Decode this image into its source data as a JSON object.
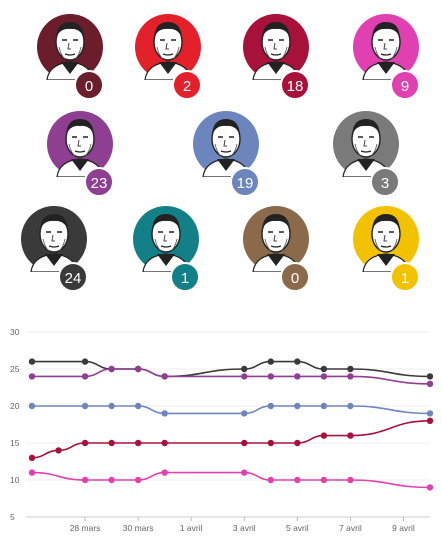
{
  "candidates": [
    {
      "value": "0",
      "color": "#6b1d2c"
    },
    {
      "value": "2",
      "color": "#e4202a"
    },
    {
      "value": "18",
      "color": "#a8123a"
    },
    {
      "value": "9",
      "color": "#e040b0"
    },
    {
      "value": "23",
      "color": "#8f3f91"
    },
    {
      "value": "19",
      "color": "#6c86bd"
    },
    {
      "value": "3",
      "color": "#7a7a7a"
    },
    {
      "value": "24",
      "color": "#3a3a3a"
    },
    {
      "value": "1",
      "color": "#137f86"
    },
    {
      "value": "0",
      "color": "#8a6a4a"
    },
    {
      "value": "1",
      "color": "#f2c200"
    }
  ],
  "chart_data": {
    "type": "line",
    "title": "",
    "xlabel": "",
    "ylabel": "",
    "ylim": [
      5,
      30
    ],
    "yticks": [
      5,
      10,
      15,
      20,
      25,
      30
    ],
    "x": [
      "26 mars",
      "27 mars",
      "28 mars",
      "29 mars",
      "30 mars",
      "31 mars",
      "1 avril",
      "2 avril",
      "3 avril",
      "4 avril",
      "5 avril",
      "6 avril",
      "7 avril",
      "8 avril",
      "9 avril",
      "10 avril"
    ],
    "xtick_labels": [
      "28 mars",
      "30 mars",
      "1 avril",
      "3 avril",
      "5 avril",
      "7 avril",
      "9 avril"
    ],
    "grid": true,
    "series": [
      {
        "color": "#3a3a3a",
        "x": [
          "26 mars",
          "28 mars",
          "29 mars",
          "30 mars",
          "31 mars",
          "3 avril",
          "4 avril",
          "5 avril",
          "6 avril",
          "7 avril",
          "10 avril"
        ],
        "values": [
          26,
          26,
          25,
          25,
          24,
          25,
          26,
          26,
          25,
          25,
          24
        ]
      },
      {
        "color": "#8f3f91",
        "x": [
          "26 mars",
          "28 mars",
          "29 mars",
          "30 mars",
          "31 mars",
          "3 avril",
          "4 avril",
          "5 avril",
          "6 avril",
          "7 avril",
          "10 avril"
        ],
        "values": [
          24,
          24,
          25,
          25,
          24,
          24,
          24,
          24,
          24,
          24,
          23
        ]
      },
      {
        "color": "#6c86bd",
        "x": [
          "26 mars",
          "28 mars",
          "29 mars",
          "30 mars",
          "31 mars",
          "3 avril",
          "4 avril",
          "5 avril",
          "6 avril",
          "7 avril",
          "10 avril"
        ],
        "values": [
          20,
          20,
          20,
          20,
          19,
          19,
          20,
          20,
          20,
          20,
          19
        ]
      },
      {
        "color": "#a8123a",
        "x": [
          "26 mars",
          "27 mars",
          "28 mars",
          "29 mars",
          "30 mars",
          "31 mars",
          "3 avril",
          "4 avril",
          "5 avril",
          "6 avril",
          "7 avril",
          "10 avril"
        ],
        "values": [
          13,
          14,
          15,
          15,
          15,
          15,
          15,
          15,
          15,
          16,
          16,
          18
        ]
      },
      {
        "color": "#e040b0",
        "x": [
          "26 mars",
          "28 mars",
          "29 mars",
          "30 mars",
          "31 mars",
          "3 avril",
          "4 avril",
          "5 avril",
          "6 avril",
          "7 avril",
          "10 avril"
        ],
        "values": [
          11,
          10,
          10,
          10,
          11,
          11,
          10,
          10,
          10,
          10,
          9
        ]
      }
    ]
  }
}
